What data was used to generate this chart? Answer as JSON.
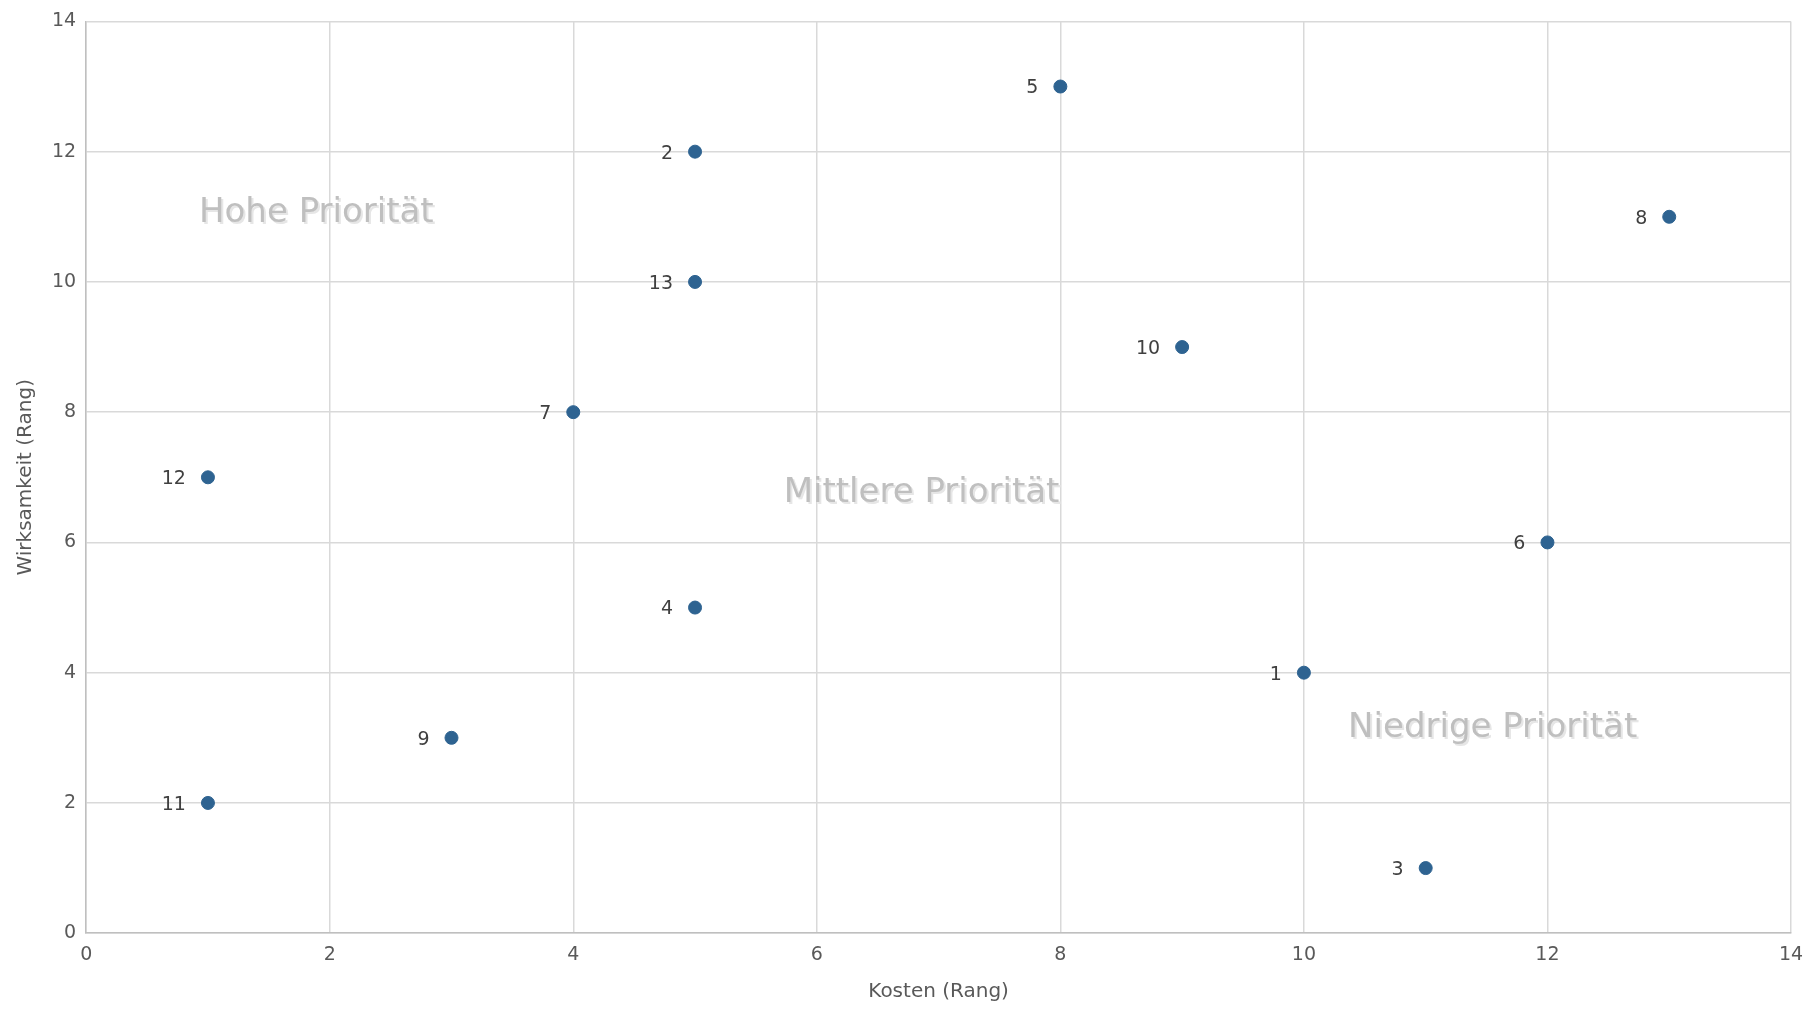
{
  "chart_data": {
    "type": "scatter",
    "xlabel": "Kosten (Rang)",
    "ylabel": "Wirksamkeit (Rang)",
    "series": [
      {
        "name": "1",
        "color": "#2e6391",
        "x": [
          10
        ],
        "values": [
          4
        ]
      },
      {
        "name": "2",
        "color": "#2e6391",
        "x": [
          5
        ],
        "values": [
          12
        ]
      },
      {
        "name": "3",
        "color": "#2e6391",
        "x": [
          11
        ],
        "values": [
          1
        ]
      },
      {
        "name": "4",
        "color": "#2e6391",
        "x": [
          5
        ],
        "values": [
          5
        ]
      },
      {
        "name": "5",
        "color": "#2e6391",
        "x": [
          8
        ],
        "values": [
          13
        ]
      },
      {
        "name": "6",
        "color": "#2e6391",
        "x": [
          12
        ],
        "values": [
          6
        ]
      },
      {
        "name": "7",
        "color": "#2e6391",
        "x": [
          4
        ],
        "values": [
          8
        ]
      },
      {
        "name": "8",
        "color": "#2e6391",
        "x": [
          13
        ],
        "values": [
          11
        ]
      },
      {
        "name": "9",
        "color": "#2e6391",
        "x": [
          3
        ],
        "values": [
          3
        ]
      },
      {
        "name": "10",
        "color": "#2e6391",
        "x": [
          9
        ],
        "values": [
          9
        ]
      },
      {
        "name": "11",
        "color": "#2e6391",
        "x": [
          1
        ],
        "values": [
          2
        ]
      },
      {
        "name": "12",
        "color": "#2e6391",
        "x": [
          1
        ],
        "values": [
          7
        ]
      },
      {
        "name": "13",
        "color": "#2e6391",
        "x": [
          5
        ],
        "values": [
          10
        ]
      }
    ],
    "marker": "circle",
    "grid": true,
    "xlim": [
      0,
      14
    ],
    "xticks": [
      0,
      2,
      4,
      6,
      8,
      10,
      12,
      14
    ],
    "ylim": [
      0,
      14
    ],
    "yticks": [
      0,
      2,
      4,
      6,
      8,
      10,
      12,
      14
    ],
    "annotations": [
      "Hohe Priorität",
      "Mittlere Priorität",
      "Niedrige Priorität"
    ]
  }
}
